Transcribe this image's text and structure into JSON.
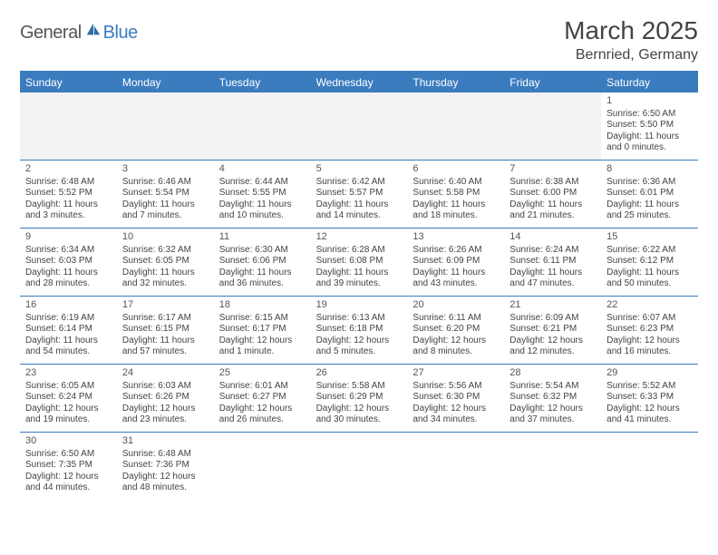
{
  "brand": {
    "general": "General",
    "blue": "Blue"
  },
  "title": "March 2025",
  "location": "Bernried, Germany",
  "colors": {
    "accent": "#3b7cbf",
    "text": "#444",
    "empty_bg": "#f2f2f2"
  },
  "weekdays": [
    "Sunday",
    "Monday",
    "Tuesday",
    "Wednesday",
    "Thursday",
    "Friday",
    "Saturday"
  ],
  "weeks": [
    [
      null,
      null,
      null,
      null,
      null,
      null,
      {
        "n": "1",
        "sunrise": "Sunrise: 6:50 AM",
        "sunset": "Sunset: 5:50 PM",
        "daylight": "Daylight: 11 hours and 0 minutes."
      }
    ],
    [
      {
        "n": "2",
        "sunrise": "Sunrise: 6:48 AM",
        "sunset": "Sunset: 5:52 PM",
        "daylight": "Daylight: 11 hours and 3 minutes."
      },
      {
        "n": "3",
        "sunrise": "Sunrise: 6:46 AM",
        "sunset": "Sunset: 5:54 PM",
        "daylight": "Daylight: 11 hours and 7 minutes."
      },
      {
        "n": "4",
        "sunrise": "Sunrise: 6:44 AM",
        "sunset": "Sunset: 5:55 PM",
        "daylight": "Daylight: 11 hours and 10 minutes."
      },
      {
        "n": "5",
        "sunrise": "Sunrise: 6:42 AM",
        "sunset": "Sunset: 5:57 PM",
        "daylight": "Daylight: 11 hours and 14 minutes."
      },
      {
        "n": "6",
        "sunrise": "Sunrise: 6:40 AM",
        "sunset": "Sunset: 5:58 PM",
        "daylight": "Daylight: 11 hours and 18 minutes."
      },
      {
        "n": "7",
        "sunrise": "Sunrise: 6:38 AM",
        "sunset": "Sunset: 6:00 PM",
        "daylight": "Daylight: 11 hours and 21 minutes."
      },
      {
        "n": "8",
        "sunrise": "Sunrise: 6:36 AM",
        "sunset": "Sunset: 6:01 PM",
        "daylight": "Daylight: 11 hours and 25 minutes."
      }
    ],
    [
      {
        "n": "9",
        "sunrise": "Sunrise: 6:34 AM",
        "sunset": "Sunset: 6:03 PM",
        "daylight": "Daylight: 11 hours and 28 minutes."
      },
      {
        "n": "10",
        "sunrise": "Sunrise: 6:32 AM",
        "sunset": "Sunset: 6:05 PM",
        "daylight": "Daylight: 11 hours and 32 minutes."
      },
      {
        "n": "11",
        "sunrise": "Sunrise: 6:30 AM",
        "sunset": "Sunset: 6:06 PM",
        "daylight": "Daylight: 11 hours and 36 minutes."
      },
      {
        "n": "12",
        "sunrise": "Sunrise: 6:28 AM",
        "sunset": "Sunset: 6:08 PM",
        "daylight": "Daylight: 11 hours and 39 minutes."
      },
      {
        "n": "13",
        "sunrise": "Sunrise: 6:26 AM",
        "sunset": "Sunset: 6:09 PM",
        "daylight": "Daylight: 11 hours and 43 minutes."
      },
      {
        "n": "14",
        "sunrise": "Sunrise: 6:24 AM",
        "sunset": "Sunset: 6:11 PM",
        "daylight": "Daylight: 11 hours and 47 minutes."
      },
      {
        "n": "15",
        "sunrise": "Sunrise: 6:22 AM",
        "sunset": "Sunset: 6:12 PM",
        "daylight": "Daylight: 11 hours and 50 minutes."
      }
    ],
    [
      {
        "n": "16",
        "sunrise": "Sunrise: 6:19 AM",
        "sunset": "Sunset: 6:14 PM",
        "daylight": "Daylight: 11 hours and 54 minutes."
      },
      {
        "n": "17",
        "sunrise": "Sunrise: 6:17 AM",
        "sunset": "Sunset: 6:15 PM",
        "daylight": "Daylight: 11 hours and 57 minutes."
      },
      {
        "n": "18",
        "sunrise": "Sunrise: 6:15 AM",
        "sunset": "Sunset: 6:17 PM",
        "daylight": "Daylight: 12 hours and 1 minute."
      },
      {
        "n": "19",
        "sunrise": "Sunrise: 6:13 AM",
        "sunset": "Sunset: 6:18 PM",
        "daylight": "Daylight: 12 hours and 5 minutes."
      },
      {
        "n": "20",
        "sunrise": "Sunrise: 6:11 AM",
        "sunset": "Sunset: 6:20 PM",
        "daylight": "Daylight: 12 hours and 8 minutes."
      },
      {
        "n": "21",
        "sunrise": "Sunrise: 6:09 AM",
        "sunset": "Sunset: 6:21 PM",
        "daylight": "Daylight: 12 hours and 12 minutes."
      },
      {
        "n": "22",
        "sunrise": "Sunrise: 6:07 AM",
        "sunset": "Sunset: 6:23 PM",
        "daylight": "Daylight: 12 hours and 16 minutes."
      }
    ],
    [
      {
        "n": "23",
        "sunrise": "Sunrise: 6:05 AM",
        "sunset": "Sunset: 6:24 PM",
        "daylight": "Daylight: 12 hours and 19 minutes."
      },
      {
        "n": "24",
        "sunrise": "Sunrise: 6:03 AM",
        "sunset": "Sunset: 6:26 PM",
        "daylight": "Daylight: 12 hours and 23 minutes."
      },
      {
        "n": "25",
        "sunrise": "Sunrise: 6:01 AM",
        "sunset": "Sunset: 6:27 PM",
        "daylight": "Daylight: 12 hours and 26 minutes."
      },
      {
        "n": "26",
        "sunrise": "Sunrise: 5:58 AM",
        "sunset": "Sunset: 6:29 PM",
        "daylight": "Daylight: 12 hours and 30 minutes."
      },
      {
        "n": "27",
        "sunrise": "Sunrise: 5:56 AM",
        "sunset": "Sunset: 6:30 PM",
        "daylight": "Daylight: 12 hours and 34 minutes."
      },
      {
        "n": "28",
        "sunrise": "Sunrise: 5:54 AM",
        "sunset": "Sunset: 6:32 PM",
        "daylight": "Daylight: 12 hours and 37 minutes."
      },
      {
        "n": "29",
        "sunrise": "Sunrise: 5:52 AM",
        "sunset": "Sunset: 6:33 PM",
        "daylight": "Daylight: 12 hours and 41 minutes."
      }
    ],
    [
      {
        "n": "30",
        "sunrise": "Sunrise: 6:50 AM",
        "sunset": "Sunset: 7:35 PM",
        "daylight": "Daylight: 12 hours and 44 minutes."
      },
      {
        "n": "31",
        "sunrise": "Sunrise: 6:48 AM",
        "sunset": "Sunset: 7:36 PM",
        "daylight": "Daylight: 12 hours and 48 minutes."
      },
      null,
      null,
      null,
      null,
      null
    ]
  ]
}
